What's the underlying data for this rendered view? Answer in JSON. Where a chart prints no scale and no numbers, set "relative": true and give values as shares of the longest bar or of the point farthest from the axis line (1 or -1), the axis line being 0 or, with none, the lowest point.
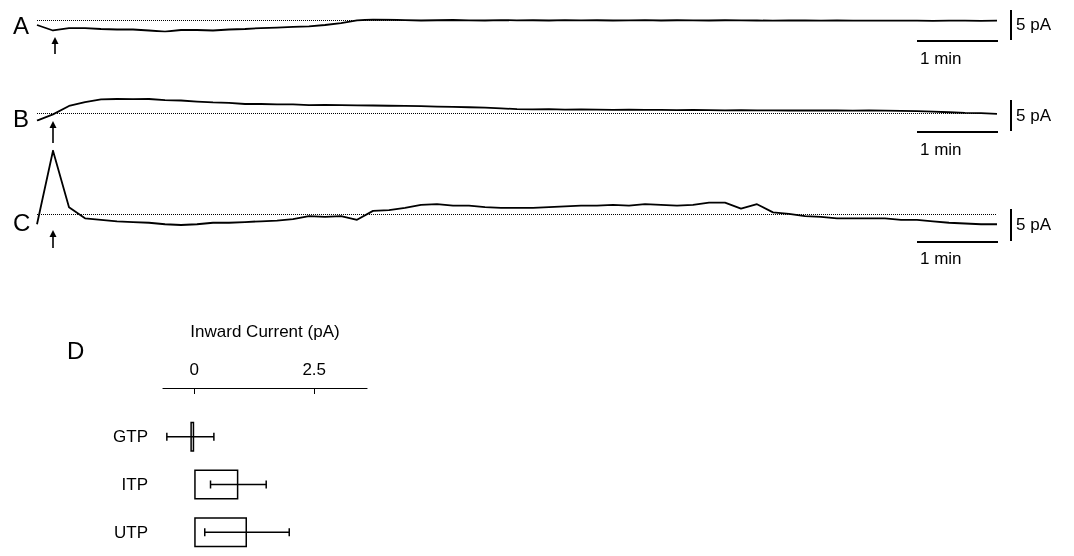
{
  "chart_data": [
    {
      "type": "line",
      "title": "A",
      "categories": [
        null,
        null,
        null,
        null,
        null,
        null,
        null,
        null,
        null,
        null,
        null,
        null,
        null,
        null,
        null,
        null,
        null,
        null,
        null,
        null,
        null,
        null,
        null,
        null,
        null,
        null,
        null,
        null,
        null,
        null,
        null,
        null,
        null,
        null,
        null,
        null,
        null,
        null,
        null,
        null,
        null,
        null,
        null,
        null,
        null,
        null,
        null,
        null,
        null,
        null,
        null,
        null,
        null,
        null,
        null,
        null,
        null,
        null,
        null,
        null,
        null
      ],
      "relative": true,
      "color": "#000000",
      "marker": "none",
      "line_style": "solid",
      "values": [
        0.55,
        0.1,
        0.3,
        0.3,
        0.22,
        0.18,
        0.18,
        0.1,
        0,
        0.14,
        0.14,
        0.1,
        0.18,
        0.22,
        0.3,
        0.34,
        0.39,
        0.43,
        0.55,
        0.71,
        0.92,
        1,
        0.98,
        0.95,
        0.92,
        0.94,
        0.96,
        0.93,
        0.92,
        0.95,
        0.93,
        0.94,
        0.92,
        0.95,
        0.93,
        0.94,
        0.92,
        0.93,
        0.95,
        0.92,
        0.94,
        0.93,
        0.92,
        0.94,
        0.93,
        0.92,
        0.91,
        0.93,
        0.92,
        0.9,
        0.92,
        0.91,
        0.9,
        0.91,
        0.9,
        0.9,
        0.89,
        0.9,
        0.9,
        0.89,
        0.9
      ],
      "ref_lines": [
        {
          "axis": "y",
          "value": 0.96,
          "label": null,
          "line_style": "dotted",
          "color": "#000000"
        }
      ],
      "annotations": [
        "5 pA",
        "1 min"
      ]
    },
    {
      "type": "line",
      "title": "B",
      "categories": [
        null,
        null,
        null,
        null,
        null,
        null,
        null,
        null,
        null,
        null,
        null,
        null,
        null,
        null,
        null,
        null,
        null,
        null,
        null,
        null,
        null,
        null,
        null,
        null,
        null,
        null,
        null,
        null,
        null,
        null,
        null,
        null,
        null,
        null,
        null,
        null,
        null,
        null,
        null,
        null,
        null,
        null,
        null,
        null,
        null,
        null,
        null,
        null,
        null,
        null,
        null,
        null,
        null,
        null,
        null,
        null,
        null,
        null,
        null,
        null,
        null
      ],
      "relative": true,
      "color": "#000000",
      "marker": "none",
      "line_style": "solid",
      "values": [
        0,
        0.29,
        0.68,
        0.86,
        0.98,
        1,
        0.99,
        1,
        0.95,
        0.93,
        0.88,
        0.84,
        0.82,
        0.77,
        0.77,
        0.75,
        0.75,
        0.72,
        0.73,
        0.72,
        0.71,
        0.7,
        0.69,
        0.68,
        0.67,
        0.65,
        0.64,
        0.62,
        0.6,
        0.57,
        0.53,
        0.52,
        0.53,
        0.51,
        0.52,
        0.51,
        0.5,
        0.51,
        0.5,
        0.5,
        0.49,
        0.5,
        0.49,
        0.48,
        0.49,
        0.48,
        0.48,
        0.47,
        0.48,
        0.47,
        0.47,
        0.46,
        0.47,
        0.46,
        0.45,
        0.44,
        0.42,
        0.39,
        0.36,
        0.35,
        0.31
      ],
      "ref_lines": [
        {
          "axis": "y",
          "value": 0.34,
          "label": null,
          "line_style": "dotted",
          "color": "#000000"
        }
      ],
      "annotations": [
        "5 pA",
        "1 min"
      ]
    },
    {
      "type": "line",
      "title": "C",
      "categories": [
        null,
        null,
        null,
        null,
        null,
        null,
        null,
        null,
        null,
        null,
        null,
        null,
        null,
        null,
        null,
        null,
        null,
        null,
        null,
        null,
        null,
        null,
        null,
        null,
        null,
        null,
        null,
        null,
        null,
        null,
        null,
        null,
        null,
        null,
        null,
        null,
        null,
        null,
        null,
        null,
        null,
        null,
        null,
        null,
        null,
        null,
        null,
        null,
        null,
        null,
        null,
        null,
        null,
        null,
        null,
        null,
        null,
        null,
        null,
        null,
        null
      ],
      "relative": true,
      "color": "#000000",
      "marker": "none",
      "line_style": "solid",
      "values": [
        0.01,
        1.0,
        0.24,
        0.09,
        0.07,
        0.05,
        0.04,
        0.03,
        0.01,
        0,
        0.01,
        0.03,
        0.03,
        0.04,
        0.05,
        0.06,
        0.08,
        0.12,
        0.11,
        0.12,
        0.07,
        0.19,
        0.2,
        0.23,
        0.27,
        0.28,
        0.26,
        0.26,
        0.24,
        0.23,
        0.23,
        0.23,
        0.24,
        0.25,
        0.26,
        0.26,
        0.27,
        0.26,
        0.28,
        0.27,
        0.26,
        0.27,
        0.3,
        0.3,
        0.22,
        0.28,
        0.17,
        0.15,
        0.12,
        0.11,
        0.09,
        0.09,
        0.09,
        0.09,
        0.07,
        0.07,
        0.05,
        0.03,
        0.02,
        0.01,
        0.01
      ],
      "ref_lines": [
        {
          "axis": "y",
          "value": 0.15,
          "label": null,
          "line_style": "dotted",
          "color": "#000000"
        }
      ],
      "annotations": [
        "5 pA",
        "1 min"
      ]
    },
    {
      "type": "bar",
      "title": "D",
      "orientation": "horizontal",
      "xlabel": "Inward Current (pA)",
      "categories": [
        "GTP",
        "ITP",
        "UTP"
      ],
      "values": [
        -0.08,
        0.92,
        1.1
      ],
      "errors": [
        0.49,
        0.58,
        0.88
      ],
      "color": "#ffffff",
      "xlim": [
        -0.65,
        3.6
      ],
      "xticks": [
        0,
        2.5
      ]
    }
  ]
}
